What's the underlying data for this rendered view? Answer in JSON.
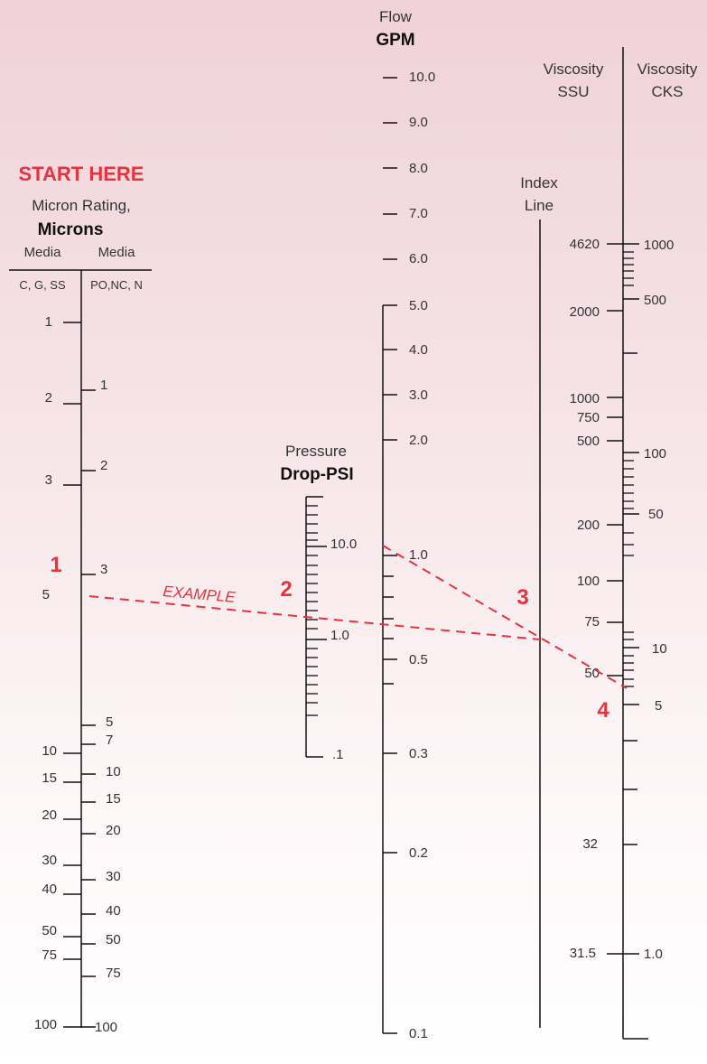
{
  "micron": {
    "start_label": "START HERE",
    "title": "Micron Rating,",
    "title_bold": "Microns",
    "media_left": "Media",
    "media_right": "Media",
    "sub_left": "C, G, SS",
    "sub_right": "PO,NC, N",
    "left_ticks": [
      "1",
      "2",
      "3",
      "5",
      "10",
      "15",
      "20",
      "30",
      "40",
      "50",
      "75",
      "100"
    ],
    "right_ticks": [
      "1",
      "2",
      "3",
      "5",
      "7",
      "10",
      "15",
      "20",
      "30",
      "40",
      "50",
      "75",
      "100"
    ]
  },
  "pressure": {
    "title": "Pressure",
    "title_bold": "Drop-PSI",
    "ticks": [
      "10.0",
      "1.0",
      ".1"
    ]
  },
  "flow": {
    "title": "Flow",
    "title_bold": "GPM",
    "ticks": [
      "10.0",
      "9.0",
      "8.0",
      "7.0",
      "6.0",
      "5.0",
      "4.0",
      "3.0",
      "2.0",
      "1.0",
      "0.5",
      "0.3",
      "0.2",
      "0.1"
    ]
  },
  "index": {
    "line1": "Index",
    "line2": "Line"
  },
  "viscosity": {
    "ssu_title1": "Viscosity",
    "ssu_title2": "SSU",
    "cks_title1": "Viscosity",
    "cks_title2": "CKS",
    "ssu_ticks": [
      "4620",
      "2000",
      "1000",
      "750",
      "500",
      "200",
      "100",
      "75",
      "50",
      "32",
      "31.5"
    ],
    "cks_ticks": [
      "1000",
      "500",
      "100",
      "50",
      "10",
      "5",
      "1.0"
    ]
  },
  "example": {
    "label": "EXAMPLE",
    "steps": [
      "1",
      "2",
      "3",
      "4"
    ],
    "line_color": "#e8323e"
  }
}
